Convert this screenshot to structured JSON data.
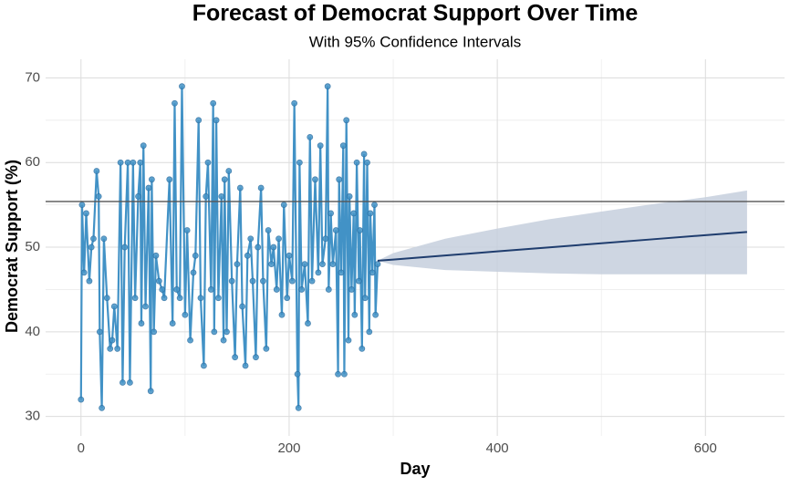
{
  "chart_data": {
    "type": "line",
    "title": "Forecast of Democrat Support Over Time",
    "subtitle": "With 95% Confidence Intervals",
    "x_label": "Day",
    "y_label": "Democrat Support (%)",
    "xlim": [
      -34,
      676
    ],
    "ylim": [
      27.7,
      72.2
    ],
    "xticks": [
      0,
      200,
      400,
      600
    ],
    "yticks": [
      30,
      40,
      50,
      60,
      70
    ],
    "xminor": [
      100,
      300,
      500
    ],
    "yminor": [
      35,
      45,
      55,
      65
    ],
    "grid": true,
    "hline": 55.4,
    "hline_color": "#555555",
    "observed": {
      "color": "#4292c6",
      "point_stroke": "#2c6fa3",
      "x": [
        0,
        1,
        3,
        5,
        8,
        10,
        12,
        15,
        17,
        18,
        20,
        22,
        25,
        28,
        30,
        32,
        35,
        38,
        40,
        42,
        45,
        47,
        50,
        52,
        55,
        57,
        58,
        60,
        62,
        65,
        67,
        68,
        70,
        72,
        75,
        78,
        80,
        85,
        88,
        90,
        92,
        95,
        97,
        100,
        102,
        105,
        108,
        110,
        113,
        115,
        118,
        120,
        122,
        125,
        127,
        128,
        130,
        132,
        135,
        137,
        138,
        140,
        142,
        145,
        148,
        150,
        153,
        155,
        158,
        160,
        163,
        165,
        168,
        170,
        173,
        175,
        178,
        180,
        183,
        185,
        188,
        190,
        193,
        195,
        198,
        200,
        203,
        205,
        208,
        209,
        210,
        212,
        215,
        218,
        220,
        222,
        225,
        228,
        230,
        232,
        235,
        237,
        238,
        240,
        242,
        245,
        247,
        248,
        250,
        252,
        253,
        255,
        257,
        258,
        260,
        262,
        263,
        265,
        267,
        268,
        270,
        272,
        273,
        275,
        277,
        278,
        280,
        282,
        283,
        285
      ],
      "values": [
        32,
        55,
        47,
        54,
        46,
        50,
        51,
        59,
        56,
        40,
        31,
        51,
        44,
        38,
        39,
        43,
        38,
        60,
        34,
        50,
        60,
        34,
        60,
        44,
        56,
        60,
        41,
        62,
        43,
        57,
        33,
        58,
        40,
        49,
        46,
        45,
        44,
        58,
        41,
        67,
        45,
        44,
        69,
        42,
        52,
        39,
        47,
        49,
        65,
        44,
        36,
        56,
        60,
        45,
        67,
        40,
        65,
        44,
        56,
        39,
        58,
        40,
        59,
        46,
        37,
        48,
        57,
        43,
        36,
        49,
        51,
        46,
        37,
        50,
        57,
        46,
        38,
        52,
        48,
        50,
        45,
        51,
        42,
        55,
        44,
        49,
        46,
        67,
        35,
        31,
        60,
        45,
        48,
        41,
        63,
        46,
        58,
        47,
        62,
        48,
        51,
        69,
        45,
        54,
        48,
        52,
        35,
        58,
        47,
        62,
        35,
        65,
        39,
        56,
        45,
        54,
        42,
        60,
        46,
        52,
        38,
        61,
        44,
        60,
        40,
        54,
        47,
        55,
        42,
        48
      ]
    },
    "forecast": {
      "color": "#1f3d6e",
      "band_color": "#c5cfdd",
      "x": [
        285,
        300,
        350,
        400,
        450,
        500,
        550,
        600,
        640
      ],
      "values": [
        48.4,
        48.54,
        49.02,
        49.5,
        49.98,
        50.46,
        50.94,
        51.42,
        51.8
      ],
      "lower": [
        48.4,
        47.9,
        47.3,
        47.1,
        46.9,
        46.8,
        46.8,
        46.8,
        46.8
      ],
      "upper": [
        48.4,
        49.3,
        51.0,
        52.2,
        53.3,
        54.2,
        55.1,
        55.9,
        56.7
      ]
    }
  }
}
